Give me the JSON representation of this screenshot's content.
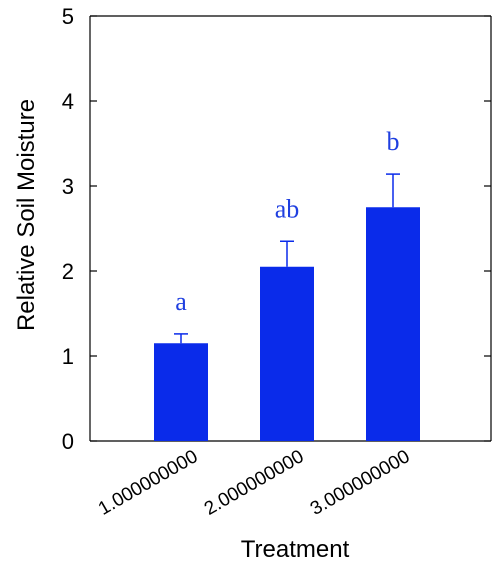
{
  "chart_data": {
    "type": "bar",
    "categories": [
      "1.000000000",
      "2.000000000",
      "3.000000000"
    ],
    "values": [
      1.15,
      2.05,
      2.75
    ],
    "errors": [
      0.11,
      0.3,
      0.39
    ],
    "significance_labels": [
      "a",
      "ab",
      "b"
    ],
    "title": "",
    "xlabel": "Treatment",
    "ylabel": "Relative Soil Moisture",
    "ylim": [
      0,
      5
    ],
    "yticks": [
      "0",
      "1",
      "2",
      "3",
      "4",
      "5"
    ],
    "grid": false,
    "legend": "none"
  },
  "colors": {
    "bar": "#0a2bea",
    "label": "#1f3fe0",
    "axis": "#000000"
  }
}
